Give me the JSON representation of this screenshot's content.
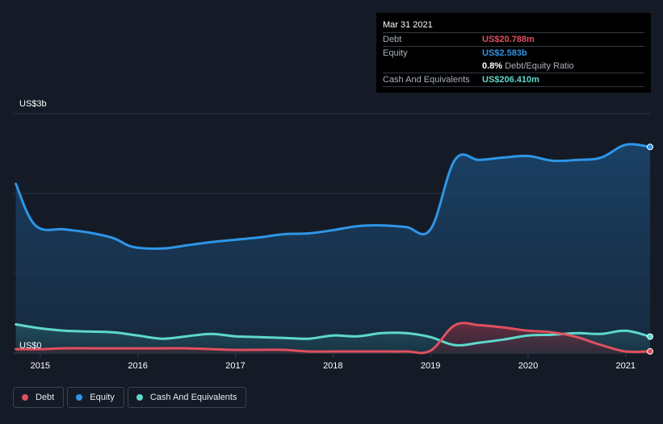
{
  "tooltip": {
    "date": "Mar 31 2021",
    "rows": [
      {
        "label": "Debt",
        "value": "US$20.788m",
        "color": "#e0505e"
      },
      {
        "label": "Equity",
        "value": "US$2.583b",
        "color": "#2e96e8"
      },
      {
        "label": "",
        "value": "0.8%",
        "suffix": "Debt/Equity Ratio"
      },
      {
        "label": "Cash And Equivalents",
        "value": "US$206.410m",
        "color": "#5fd8cc"
      }
    ]
  },
  "legend": [
    {
      "label": "Debt",
      "color": "#e0505e"
    },
    {
      "label": "Equity",
      "color": "#2e96e8"
    },
    {
      "label": "Cash And Equivalents",
      "color": "#5fd8cc"
    }
  ],
  "chart_data": {
    "type": "area",
    "ylabel_top": "US$3b",
    "ylabel_bottom": "US$0",
    "ylim": [
      0,
      3.0
    ],
    "xlim": [
      2014.72,
      2021.25
    ],
    "x_ticks": [
      "2015",
      "2016",
      "2017",
      "2018",
      "2019",
      "2020",
      "2021"
    ],
    "x_tick_values": [
      2015,
      2016,
      2017,
      2018,
      2019,
      2020,
      2021
    ],
    "y_grid": [
      0,
      1.0,
      2.0,
      3.0
    ],
    "grid": true,
    "series": [
      {
        "name": "Equity",
        "color": "#2e96e8",
        "x": [
          2014.75,
          2014.95,
          2015.25,
          2015.5,
          2015.75,
          2015.95,
          2016.25,
          2016.5,
          2016.75,
          2017.0,
          2017.25,
          2017.5,
          2017.75,
          2018.0,
          2018.25,
          2018.5,
          2018.75,
          2019.0,
          2019.25,
          2019.5,
          2019.75,
          2020.0,
          2020.25,
          2020.5,
          2020.75,
          2021.0,
          2021.25
        ],
        "values": [
          2.12,
          1.6,
          1.55,
          1.51,
          1.44,
          1.33,
          1.31,
          1.35,
          1.39,
          1.42,
          1.45,
          1.49,
          1.5,
          1.54,
          1.59,
          1.6,
          1.58,
          1.55,
          2.42,
          2.42,
          2.45,
          2.47,
          2.41,
          2.42,
          2.45,
          2.61,
          2.583
        ]
      },
      {
        "name": "Cash And Equivalents",
        "color": "#5fd8cc",
        "x": [
          2014.75,
          2015.0,
          2015.25,
          2015.5,
          2015.75,
          2016.0,
          2016.25,
          2016.5,
          2016.75,
          2017.0,
          2017.25,
          2017.5,
          2017.75,
          2018.0,
          2018.25,
          2018.5,
          2018.75,
          2019.0,
          2019.25,
          2019.5,
          2019.75,
          2020.0,
          2020.25,
          2020.5,
          2020.75,
          2021.0,
          2021.25
        ],
        "values": [
          0.36,
          0.31,
          0.28,
          0.27,
          0.26,
          0.22,
          0.18,
          0.21,
          0.24,
          0.21,
          0.2,
          0.19,
          0.18,
          0.22,
          0.21,
          0.25,
          0.25,
          0.2,
          0.1,
          0.13,
          0.17,
          0.22,
          0.23,
          0.25,
          0.24,
          0.28,
          0.206
        ]
      },
      {
        "name": "Debt",
        "color": "#e0505e",
        "x": [
          2014.75,
          2015.0,
          2015.25,
          2015.5,
          2015.75,
          2016.0,
          2016.25,
          2016.5,
          2016.75,
          2017.0,
          2017.25,
          2017.5,
          2017.75,
          2018.0,
          2018.25,
          2018.5,
          2018.75,
          2019.0,
          2019.25,
          2019.5,
          2019.75,
          2020.0,
          2020.25,
          2020.5,
          2020.75,
          2021.0,
          2021.25
        ],
        "values": [
          0.05,
          0.05,
          0.06,
          0.06,
          0.06,
          0.06,
          0.06,
          0.06,
          0.05,
          0.04,
          0.04,
          0.04,
          0.02,
          0.02,
          0.02,
          0.02,
          0.02,
          0.03,
          0.35,
          0.35,
          0.32,
          0.28,
          0.26,
          0.2,
          0.1,
          0.02,
          0.021
        ]
      }
    ]
  }
}
